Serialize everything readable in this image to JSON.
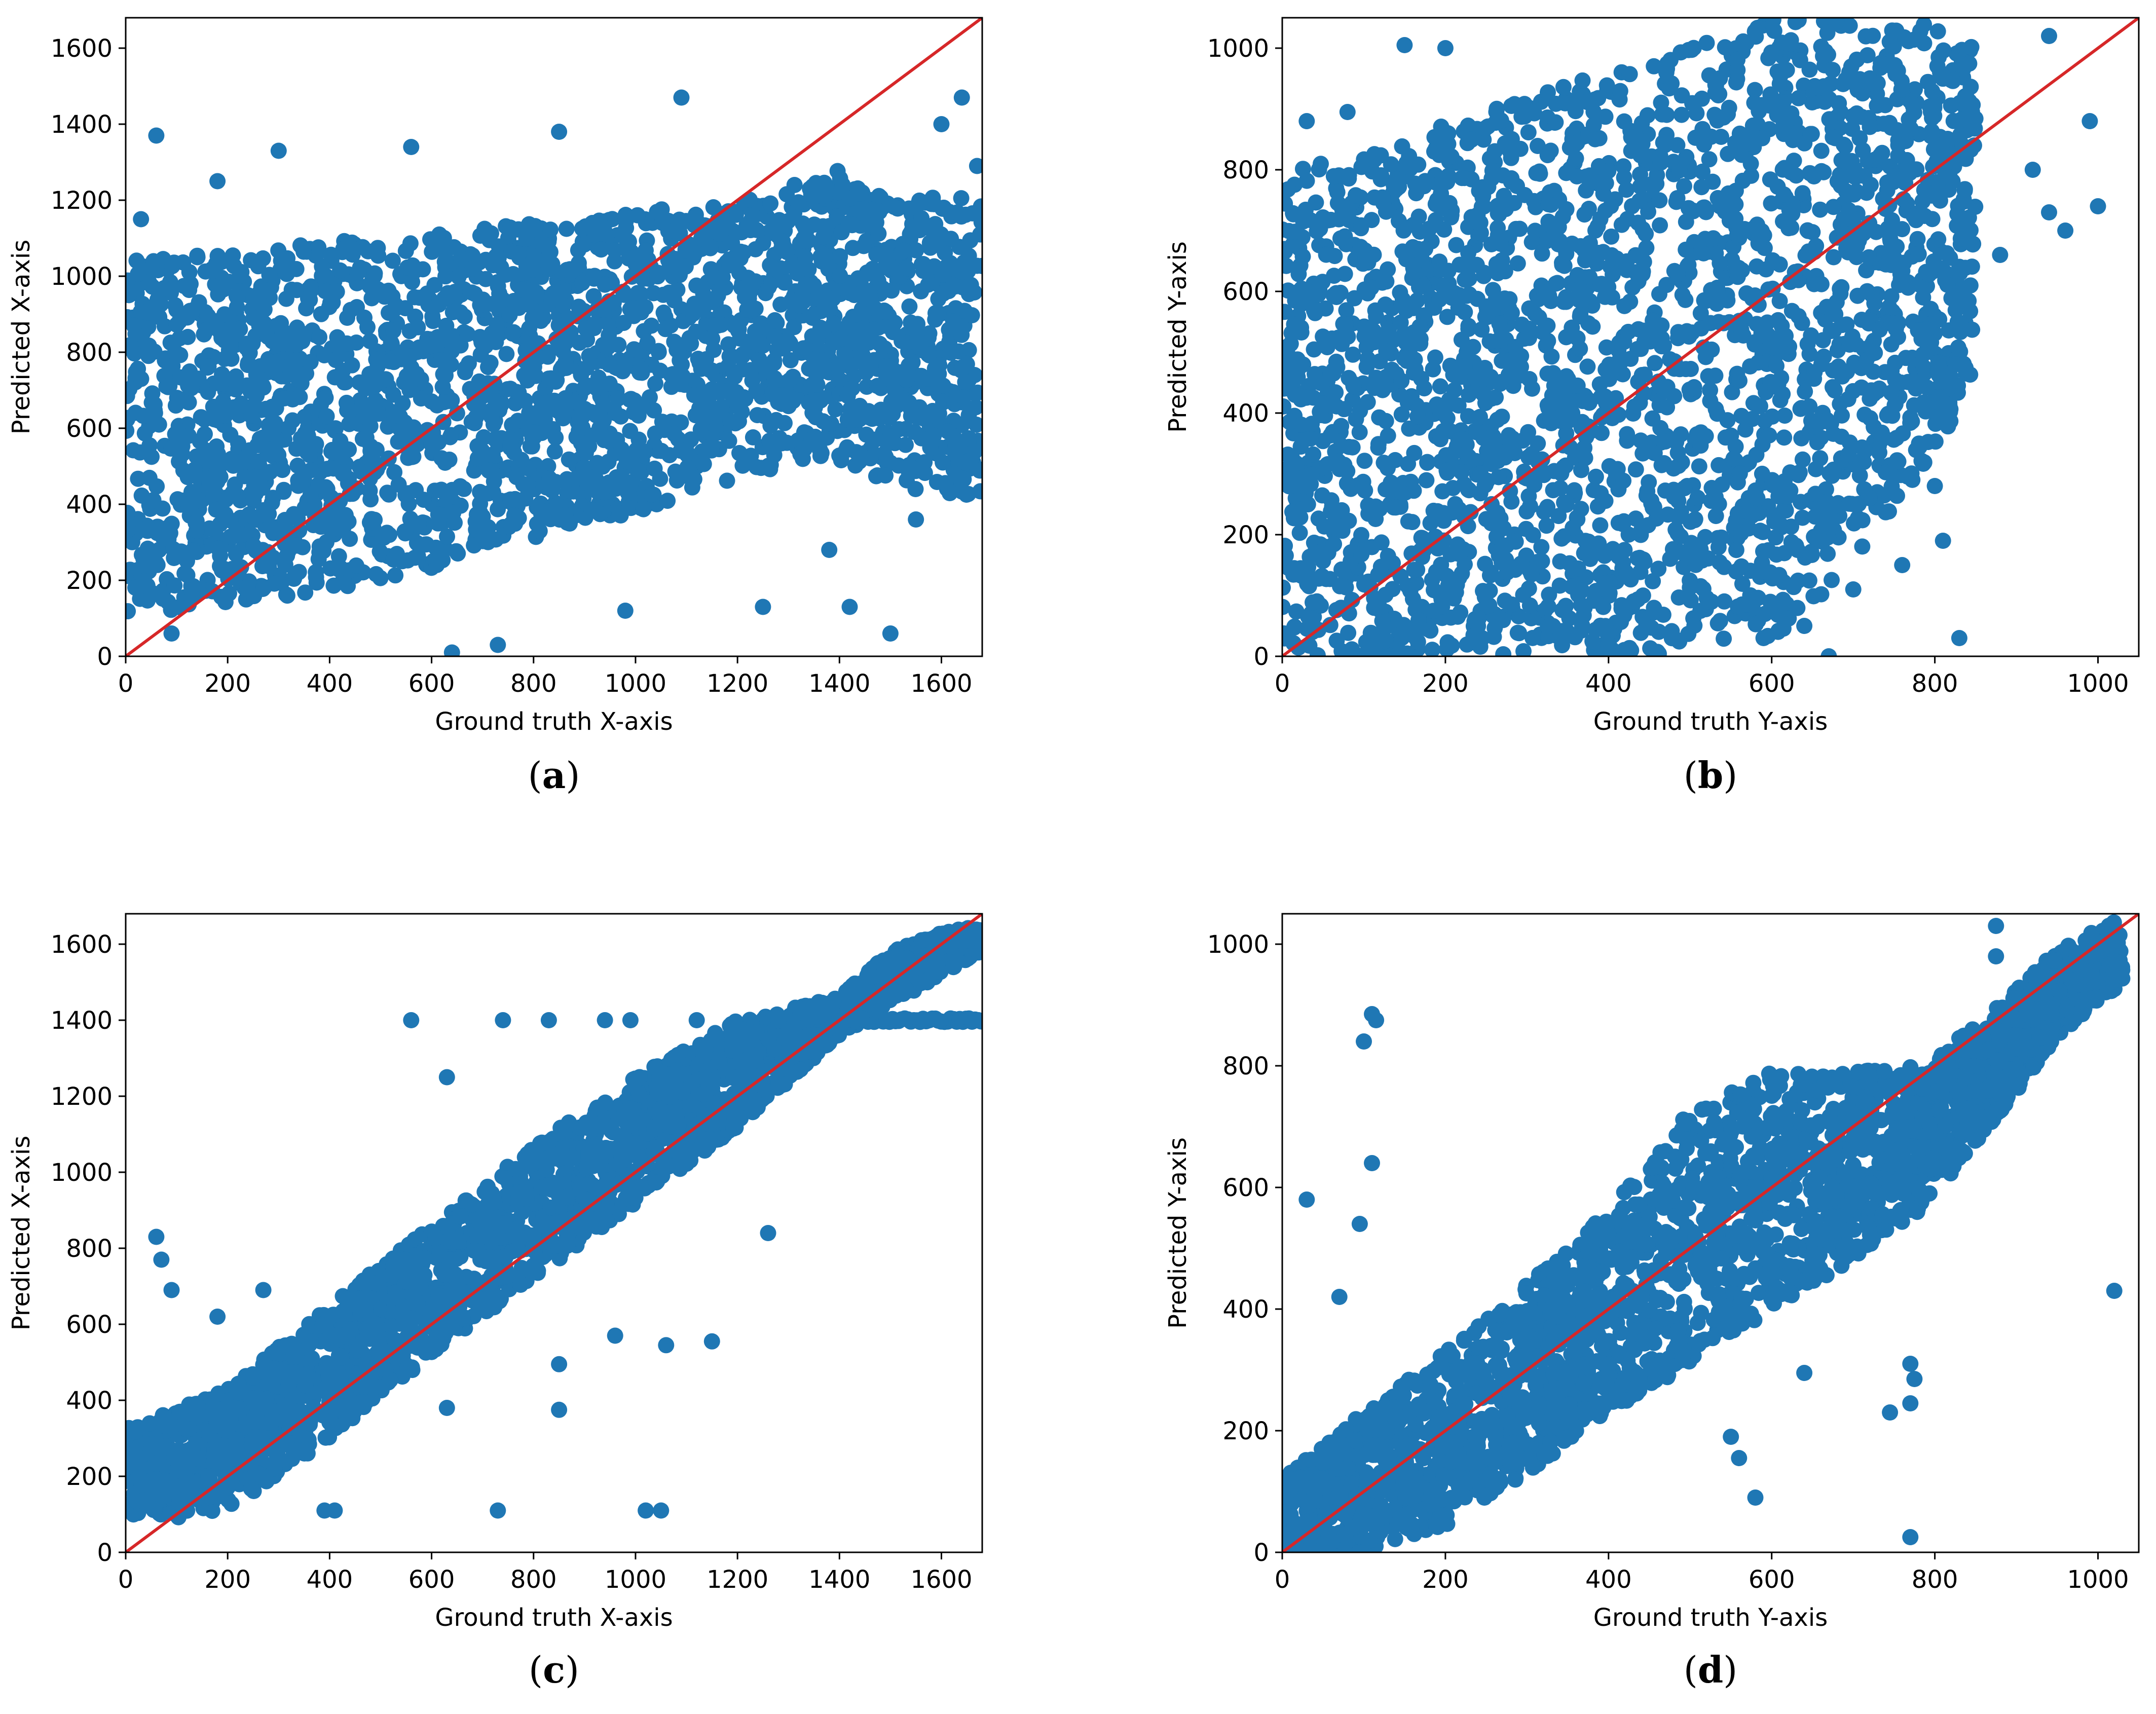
{
  "colors": {
    "points": "#1f77b4",
    "identity_line": "#d62728",
    "axes": "#000000",
    "background": "#ffffff"
  },
  "chart_data": [
    {
      "id": "a",
      "type": "scatter",
      "panel_label": "a",
      "xlabel": "Ground truth X-axis",
      "ylabel": "Predicted X-axis",
      "xlim": [
        0,
        1680
      ],
      "ylim": [
        0,
        1680
      ],
      "xticks": [
        0,
        200,
        400,
        600,
        800,
        1000,
        1200,
        1400,
        1600
      ],
      "yticks": [
        0,
        200,
        400,
        600,
        800,
        1000,
        1200,
        1400,
        1600
      ],
      "reference_line": {
        "name": "y = x",
        "from": [
          0,
          0
        ],
        "to": [
          1680,
          1680
        ]
      },
      "band": {
        "description": "dense cloud, prediction compressed toward mean",
        "x": [
          0,
          200,
          400,
          600,
          800,
          1000,
          1200,
          1400,
          1450,
          1680
        ],
        "y_low": [
          100,
          140,
          170,
          230,
          300,
          380,
          460,
          520,
          450,
          420
        ],
        "y_high": [
          1040,
          1060,
          1090,
          1110,
          1140,
          1170,
          1200,
          1280,
          1230,
          1200
        ]
      },
      "outliers": {
        "x": [
          60,
          180,
          300,
          560,
          640,
          730,
          850,
          1090,
          1500,
          1420,
          1640,
          1550,
          1470,
          1600,
          1670,
          1380,
          1250,
          980,
          90,
          30
        ],
        "y": [
          1370,
          1250,
          1330,
          1340,
          10,
          30,
          1380,
          1470,
          60,
          130,
          1470,
          360,
          570,
          1400,
          1290,
          280,
          130,
          120,
          60,
          1150
        ]
      }
    },
    {
      "id": "b",
      "type": "scatter",
      "panel_label": "b",
      "xlabel": "Ground truth Y-axis",
      "ylabel": "Predicted Y-axis",
      "xlim": [
        0,
        1050
      ],
      "ylim": [
        0,
        1050
      ],
      "xticks": [
        0,
        200,
        400,
        600,
        800,
        1000
      ],
      "yticks": [
        0,
        200,
        400,
        600,
        800,
        1000
      ],
      "reference_line": {
        "name": "y = x",
        "from": [
          0,
          0
        ],
        "to": [
          1050,
          1050
        ]
      },
      "band": {
        "description": "very wide vertical spread",
        "x": [
          0,
          100,
          200,
          300,
          400,
          500,
          600,
          700,
          780,
          850
        ],
        "y_low": [
          0,
          0,
          0,
          0,
          0,
          0,
          20,
          150,
          300,
          450
        ],
        "y_high": [
          800,
          830,
          880,
          920,
          960,
          1000,
          1050,
          1050,
          1050,
          1000
        ]
      },
      "outliers": {
        "x": [
          1000,
          990,
          960,
          940,
          920,
          880,
          830,
          800,
          810,
          670,
          640,
          590,
          150,
          200,
          80,
          30,
          700,
          760,
          720,
          940
        ],
        "y": [
          740,
          880,
          700,
          730,
          800,
          660,
          30,
          280,
          190,
          0,
          50,
          30,
          1005,
          1000,
          895,
          880,
          110,
          150,
          260,
          1020
        ]
      }
    },
    {
      "id": "c",
      "type": "scatter",
      "panel_label": "c",
      "xlabel": "Ground truth X-axis",
      "ylabel": "Predicted X-axis",
      "xlim": [
        0,
        1680
      ],
      "ylim": [
        0,
        1680
      ],
      "xticks": [
        0,
        200,
        400,
        600,
        800,
        1000,
        1200,
        1400,
        1600
      ],
      "yticks": [
        0,
        200,
        400,
        600,
        800,
        1000,
        1200,
        1400,
        1600
      ],
      "reference_line": {
        "name": "y = x",
        "from": [
          0,
          0
        ],
        "to": [
          1680,
          1680
        ]
      },
      "band": {
        "description": "tight band around identity, floor near 90",
        "x": [
          0,
          100,
          200,
          400,
          600,
          800,
          1000,
          1200,
          1400,
          1500,
          1600,
          1680
        ],
        "y_low": [
          90,
          90,
          110,
          300,
          520,
          720,
          920,
          1120,
          1360,
          1440,
          1520,
          1580
        ],
        "y_high": [
          330,
          380,
          430,
          650,
          860,
          1070,
          1250,
          1400,
          1460,
          1580,
          1630,
          1650
        ]
      },
      "plateau": {
        "x_from": 1420,
        "x_to": 1680,
        "y": 1400
      },
      "outliers": {
        "x": [
          60,
          70,
          90,
          180,
          270,
          560,
          630,
          740,
          830,
          940,
          990,
          1120,
          960,
          1060,
          1150,
          1260,
          850,
          850,
          630,
          730,
          1020,
          1050,
          390,
          410
        ],
        "y": [
          830,
          770,
          690,
          620,
          690,
          1400,
          1250,
          1400,
          1400,
          1400,
          1400,
          1400,
          570,
          545,
          555,
          840,
          375,
          495,
          380,
          110,
          110,
          110,
          110,
          110
        ]
      }
    },
    {
      "id": "d",
      "type": "scatter",
      "panel_label": "d",
      "xlabel": "Ground truth Y-axis",
      "ylabel": "Predicted Y-axis",
      "xlim": [
        0,
        1050
      ],
      "ylim": [
        0,
        1050
      ],
      "xticks": [
        0,
        200,
        400,
        600,
        800,
        1000
      ],
      "yticks": [
        0,
        200,
        400,
        600,
        800,
        1000
      ],
      "reference_line": {
        "name": "y = x",
        "from": [
          0,
          0
        ],
        "to": [
          1050,
          1050
        ]
      },
      "band": {
        "description": "band along identity with plateau near 790",
        "x": [
          0,
          100,
          200,
          300,
          400,
          500,
          600,
          700,
          780,
          880,
          950,
          1030
        ],
        "y_low": [
          0,
          0,
          40,
          130,
          230,
          310,
          400,
          480,
          560,
          720,
          850,
          930
        ],
        "y_high": [
          120,
          230,
          330,
          440,
          560,
          730,
          790,
          790,
          800,
          900,
          990,
          1050
        ]
      },
      "outliers": {
        "x": [
          110,
          115,
          100,
          110,
          30,
          70,
          95,
          1020,
          770,
          770,
          775,
          745,
          770,
          580,
          640,
          560,
          550,
          875,
          875
        ],
        "y": [
          885,
          875,
          840,
          640,
          580,
          420,
          540,
          430,
          310,
          245,
          285,
          230,
          25,
          90,
          295,
          155,
          190,
          1030,
          980
        ]
      }
    }
  ]
}
